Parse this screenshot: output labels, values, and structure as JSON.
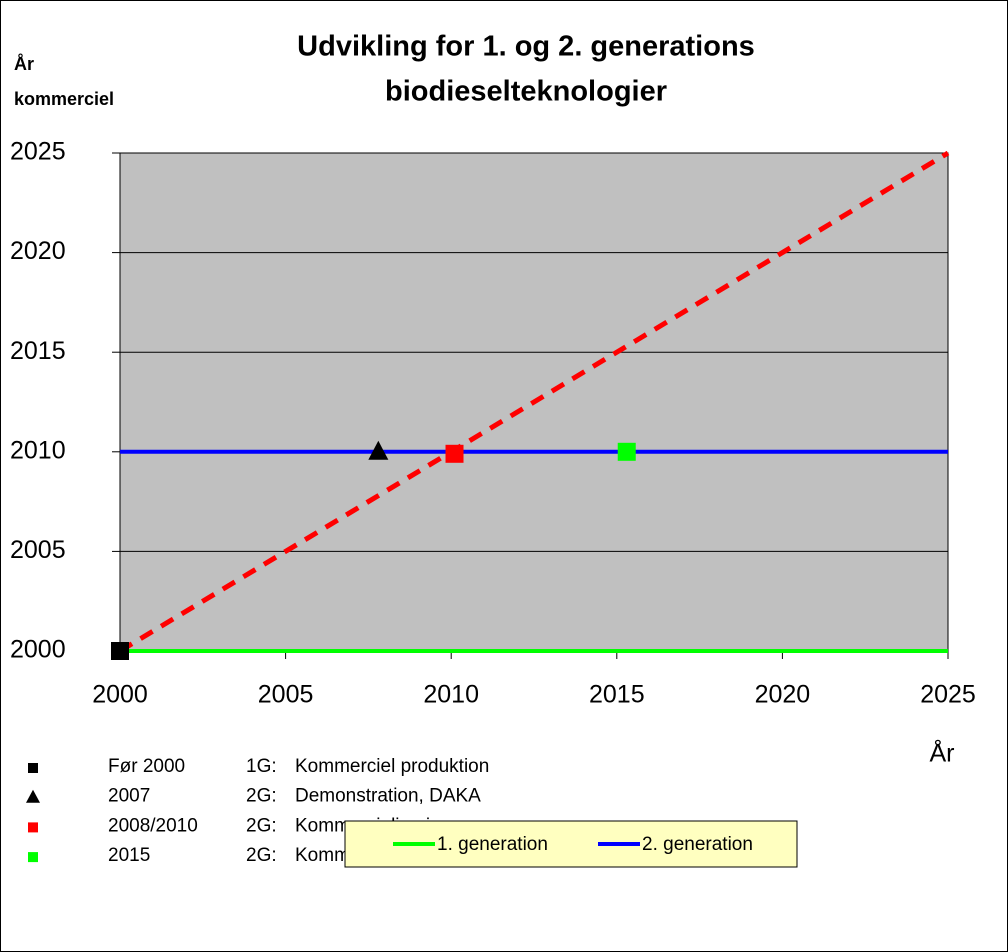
{
  "chart_data": {
    "type": "line",
    "title": [
      "Udvikling for 1. og 2. generations",
      "biodieselteknologier"
    ],
    "y_label": [
      "År",
      "kommerciel"
    ],
    "x_label": "År",
    "xlim": [
      2000,
      2025
    ],
    "xticks": [
      2000,
      2005,
      2010,
      2015,
      2020,
      2025
    ],
    "ylim": [
      2000,
      2025
    ],
    "yticks": [
      2000,
      2005,
      2010,
      2015,
      2020,
      2025
    ],
    "grid": true,
    "background": "#c0c0c0",
    "series": [
      {
        "name": "1. generation",
        "color": "#00ff00",
        "x": [
          2000,
          2025
        ],
        "values": [
          2000,
          2000
        ]
      },
      {
        "name": "2. generation",
        "color": "#0000ff",
        "x": [
          2000,
          2025
        ],
        "values": [
          2010,
          2010
        ]
      },
      {
        "color": "#ff0000",
        "dashed": true,
        "x": [
          2000,
          2025
        ],
        "values": [
          2000,
          2025
        ]
      }
    ],
    "legend": "bottom",
    "points": [
      {
        "x": 2000,
        "y": 2000,
        "marker": "square",
        "color": "#000000",
        "label": "Før 2000",
        "gen": "1G:",
        "text": "Kommerciel produktion"
      },
      {
        "x": 2007.8,
        "y": 2010,
        "marker": "triangle",
        "color": "#000000",
        "label": "2007",
        "gen": "2G:",
        "text": "Demonstration, DAKA"
      },
      {
        "x": 2010.1,
        "y": 2009.9,
        "marker": "square",
        "color": "#ff0000",
        "label": "2008/2010",
        "gen": "2G:",
        "text": "Kommercialisering"
      },
      {
        "x": 2015.3,
        "y": 2010,
        "marker": "square",
        "color": "#00ff00",
        "label": "2015",
        "gen": "2G:",
        "text": "Kommercialisering 15-20 % iblanding"
      }
    ]
  }
}
